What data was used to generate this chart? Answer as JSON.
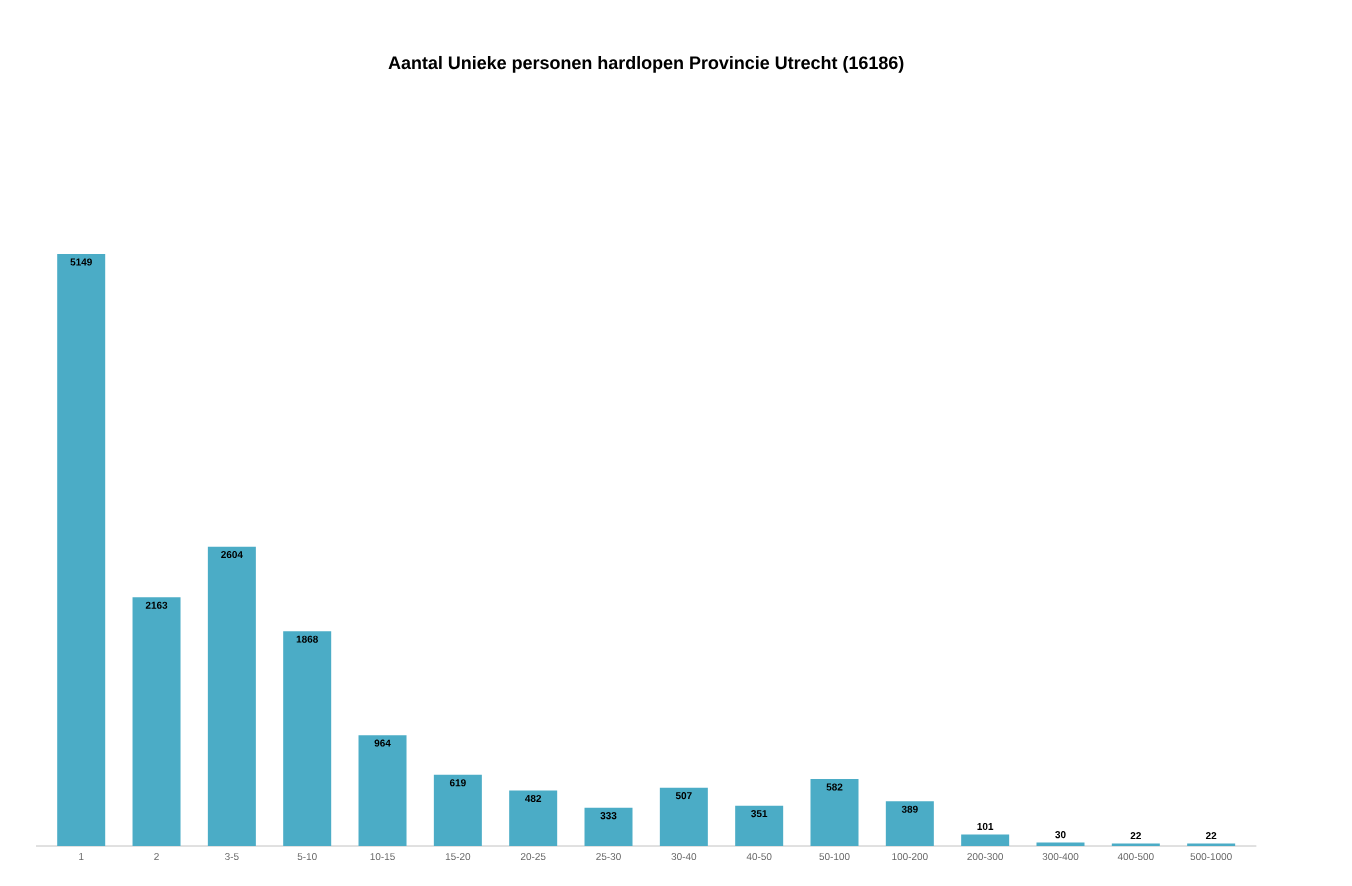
{
  "chart_data": {
    "type": "bar",
    "title": "Aantal Unieke personen hardlopen Provincie Utrecht (16186)",
    "categories": [
      "1",
      "2",
      "3-5",
      "5-10",
      "10-15",
      "15-20",
      "20-25",
      "25-30",
      "30-40",
      "40-50",
      "50-100",
      "100-200",
      "200-300",
      "300-400",
      "400-500",
      "500-1000"
    ],
    "values": [
      5149,
      2163,
      2604,
      1868,
      964,
      619,
      482,
      333,
      507,
      351,
      582,
      389,
      101,
      30,
      22,
      22
    ],
    "color": "#4bacc6",
    "data_labels": true
  }
}
